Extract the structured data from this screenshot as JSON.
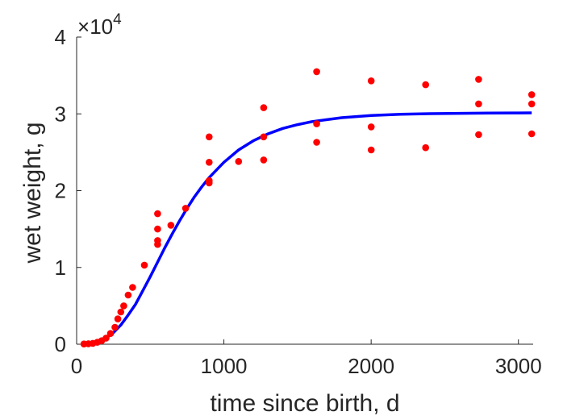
{
  "chart_data": {
    "type": "scatter",
    "title": "",
    "xlabel": "time since birth, d",
    "ylabel": "wet weight, g",
    "xlim": [
      0,
      3100
    ],
    "ylim": [
      0,
      40000
    ],
    "xticks": [
      0,
      1000,
      2000,
      3000
    ],
    "yticks": [
      0,
      1,
      2,
      3,
      4
    ],
    "y_multiplier": "×10^4",
    "y_multiplier_base": "10",
    "y_multiplier_exponent": "4",
    "grid": false,
    "legend": "none",
    "series": [
      {
        "kind": "scatter",
        "color": "#ff0000",
        "points": [
          [
            50,
            30
          ],
          [
            80,
            60
          ],
          [
            110,
            120
          ],
          [
            140,
            250
          ],
          [
            170,
            450
          ],
          [
            200,
            800
          ],
          [
            230,
            1400
          ],
          [
            260,
            2200
          ],
          [
            280,
            3300
          ],
          [
            300,
            4200
          ],
          [
            320,
            5000
          ],
          [
            350,
            6400
          ],
          [
            380,
            7400
          ],
          [
            460,
            10300
          ],
          [
            550,
            13000
          ],
          [
            550,
            13500
          ],
          [
            550,
            15000
          ],
          [
            550,
            17000
          ],
          [
            640,
            15500
          ],
          [
            740,
            17700
          ],
          [
            900,
            21000
          ],
          [
            900,
            21300
          ],
          [
            900,
            23700
          ],
          [
            900,
            27000
          ],
          [
            1100,
            23800
          ],
          [
            1270,
            24000
          ],
          [
            1270,
            27000
          ],
          [
            1270,
            30800
          ],
          [
            1630,
            26300
          ],
          [
            1630,
            28700
          ],
          [
            1630,
            35500
          ],
          [
            2000,
            25300
          ],
          [
            2000,
            28300
          ],
          [
            2000,
            34300
          ],
          [
            2370,
            25600
          ],
          [
            2370,
            33800
          ],
          [
            2730,
            27300
          ],
          [
            2730,
            31300
          ],
          [
            2730,
            34500
          ],
          [
            3090,
            27400
          ],
          [
            3090,
            31300
          ],
          [
            3090,
            32500
          ]
        ]
      },
      {
        "kind": "line",
        "color": "#0000ff",
        "points": [
          [
            50,
            50
          ],
          [
            100,
            150
          ],
          [
            150,
            380
          ],
          [
            200,
            800
          ],
          [
            250,
            1500
          ],
          [
            300,
            2500
          ],
          [
            350,
            3800
          ],
          [
            400,
            5200
          ],
          [
            450,
            7000
          ],
          [
            500,
            8800
          ],
          [
            550,
            10700
          ],
          [
            600,
            12600
          ],
          [
            650,
            14400
          ],
          [
            700,
            16100
          ],
          [
            750,
            17700
          ],
          [
            800,
            19200
          ],
          [
            850,
            20500
          ],
          [
            900,
            21700
          ],
          [
            1000,
            23700
          ],
          [
            1100,
            25300
          ],
          [
            1200,
            26500
          ],
          [
            1300,
            27400
          ],
          [
            1400,
            28100
          ],
          [
            1500,
            28600
          ],
          [
            1600,
            29000
          ],
          [
            1800,
            29500
          ],
          [
            2000,
            29800
          ],
          [
            2200,
            29950
          ],
          [
            2400,
            30030
          ],
          [
            2600,
            30070
          ],
          [
            2800,
            30100
          ],
          [
            3000,
            30120
          ],
          [
            3090,
            30130
          ]
        ]
      }
    ]
  }
}
